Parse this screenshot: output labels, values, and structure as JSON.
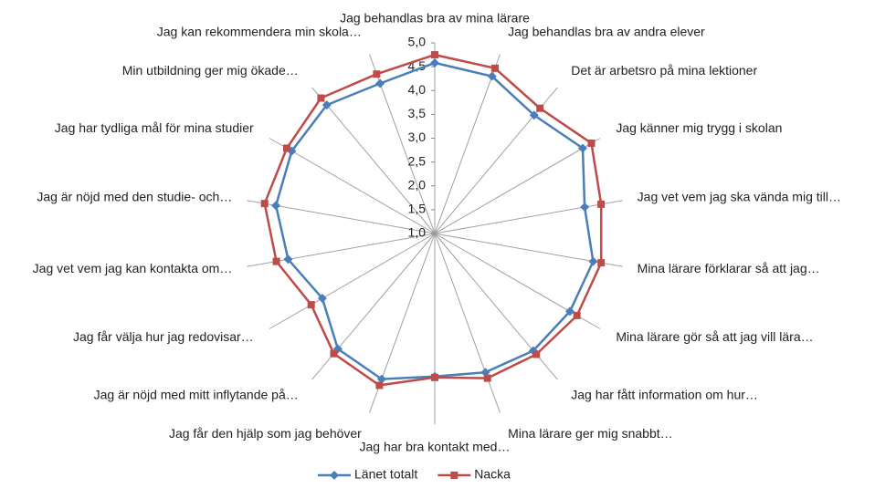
{
  "chart_data": {
    "type": "radar",
    "categories": [
      "Jag behandlas bra av mina lärare",
      "Jag behandlas bra av andra elever",
      "Det är arbetsro på mina lektioner",
      "Jag känner mig trygg i skolan",
      "Jag vet vem jag ska vända mig till…",
      "Mina lärare förklarar så att jag…",
      "Mina lärare gör så att jag vill lära…",
      "Jag har fått information om hur…",
      "Mina lärare ger mig snabbt…",
      "Jag har bra kontakt med…",
      "Jag får den hjälp som jag behöver",
      "Jag är nöjd med mitt inflytande på…",
      "Jag får välja hur jag redovisar…",
      "Jag vet vem jag kan kontakta om…",
      "Jag är nöjd med den studie- och…",
      "Jag har tydliga mål för mina studier",
      "Min utbildning ger mig ökade…",
      "Jag kan rekommendera min skola…"
    ],
    "series": [
      {
        "name": "Länet totalt",
        "color": "#4a7ebb",
        "marker": "diamond",
        "values": [
          4.58,
          4.51,
          4.24,
          4.58,
          4.19,
          4.37,
          4.27,
          4.21,
          4.1,
          4.0,
          4.25,
          4.16,
          3.72,
          4.12,
          4.38,
          4.46,
          4.52,
          4.35
        ]
      },
      {
        "name": "Nacka",
        "color": "#be4b48",
        "marker": "square",
        "values": [
          4.75,
          4.69,
          4.43,
          4.79,
          4.54,
          4.54,
          4.44,
          4.31,
          4.23,
          4.02,
          4.39,
          4.29,
          3.99,
          4.37,
          4.62,
          4.58,
          4.71,
          4.56
        ]
      }
    ],
    "ylim": [
      1,
      5
    ],
    "yticks": [
      {
        "value": 1,
        "label": "1,0"
      },
      {
        "value": 1.5,
        "label": "1,5"
      },
      {
        "value": 2,
        "label": "2,0"
      },
      {
        "value": 2.5,
        "label": "2,5"
      },
      {
        "value": 3,
        "label": "3,0"
      },
      {
        "value": 3.5,
        "label": "3,5"
      },
      {
        "value": 4,
        "label": "4,0"
      },
      {
        "value": 4.5,
        "label": "4,5"
      },
      {
        "value": 5,
        "label": "5,0"
      }
    ],
    "legend": "bottom"
  }
}
